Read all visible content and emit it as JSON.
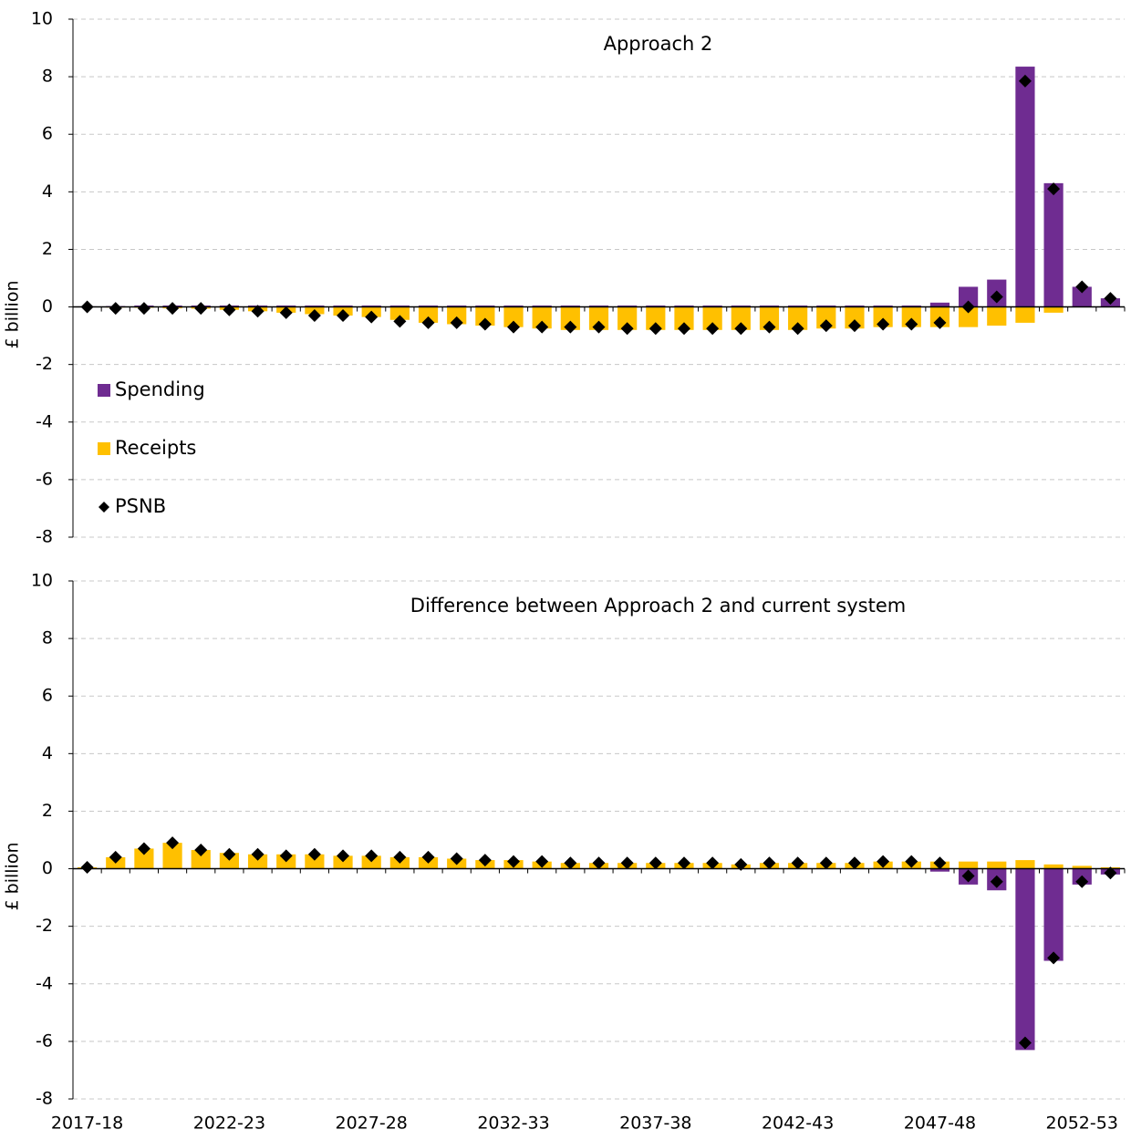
{
  "chart_data": [
    {
      "type": "bar",
      "title": "Approach 2",
      "y_label": "£ billion",
      "stacked": true,
      "grid": true,
      "legend": "left",
      "ylim": [
        -8,
        10
      ],
      "yticks": [
        -8,
        -6,
        -4,
        -2,
        0,
        2,
        4,
        6,
        8,
        10
      ],
      "series": [
        {
          "name": "Spending",
          "kind": "bar",
          "color": "#6f2c91",
          "values": [
            0.02,
            0.03,
            0.05,
            0.05,
            0.05,
            0.05,
            0.05,
            0.05,
            0.05,
            0.05,
            0.05,
            0.05,
            0.05,
            0.05,
            0.05,
            0.05,
            0.05,
            0.05,
            0.05,
            0.05,
            0.05,
            0.05,
            0.05,
            0.05,
            0.05,
            0.05,
            0.05,
            0.05,
            0.05,
            0.05,
            0.15,
            0.7,
            0.95,
            8.35,
            4.3,
            0.7,
            0.3
          ]
        },
        {
          "name": "Receipts",
          "kind": "bar",
          "color": "#ffc000",
          "values": [
            0,
            -0.02,
            -0.03,
            -0.05,
            -0.06,
            -0.1,
            -0.15,
            -0.2,
            -0.25,
            -0.3,
            -0.35,
            -0.45,
            -0.55,
            -0.6,
            -0.65,
            -0.7,
            -0.75,
            -0.8,
            -0.8,
            -0.8,
            -0.8,
            -0.8,
            -0.8,
            -0.8,
            -0.8,
            -0.8,
            -0.75,
            -0.75,
            -0.7,
            -0.7,
            -0.7,
            -0.7,
            -0.65,
            -0.55,
            -0.2,
            0,
            0
          ]
        },
        {
          "name": "PSNB",
          "kind": "marker",
          "color": "#000000",
          "values": [
            0,
            -0.05,
            -0.05,
            -0.05,
            -0.05,
            -0.1,
            -0.15,
            -0.2,
            -0.3,
            -0.3,
            -0.35,
            -0.5,
            -0.55,
            -0.55,
            -0.6,
            -0.7,
            -0.7,
            -0.7,
            -0.7,
            -0.75,
            -0.75,
            -0.75,
            -0.75,
            -0.75,
            -0.7,
            -0.75,
            -0.65,
            -0.65,
            -0.6,
            -0.6,
            -0.55,
            0,
            0.35,
            7.85,
            4.1,
            0.7,
            0.3
          ]
        }
      ]
    },
    {
      "type": "bar",
      "title": "Difference between Approach 2 and current system",
      "y_label": "£ billion",
      "stacked": true,
      "grid": true,
      "ylim": [
        -8,
        10
      ],
      "yticks": [
        -8,
        -6,
        -4,
        -2,
        0,
        2,
        4,
        6,
        8,
        10
      ],
      "categories": [
        "2017-18",
        null,
        null,
        null,
        null,
        "2022-23",
        null,
        null,
        null,
        null,
        "2027-28",
        null,
        null,
        null,
        null,
        "2032-33",
        null,
        null,
        null,
        null,
        "2037-38",
        null,
        null,
        null,
        null,
        "2042-43",
        null,
        null,
        null,
        null,
        "2047-48",
        null,
        null,
        null,
        null,
        "2052-53",
        null
      ],
      "series": [
        {
          "kind": "bar",
          "color": "#6f2c91",
          "values": [
            0,
            0,
            0,
            0,
            0,
            0,
            0,
            0,
            0,
            0,
            0,
            0,
            0,
            0,
            0,
            0,
            0,
            0,
            0,
            0,
            0,
            0,
            0,
            0,
            0,
            0,
            0,
            0,
            0,
            0,
            -0.1,
            -0.55,
            -0.75,
            -6.3,
            -3.2,
            -0.55,
            -0.2
          ]
        },
        {
          "kind": "bar",
          "color": "#ffc000",
          "values": [
            0.05,
            0.4,
            0.7,
            0.9,
            0.65,
            0.55,
            0.5,
            0.5,
            0.5,
            0.45,
            0.45,
            0.4,
            0.4,
            0.35,
            0.3,
            0.3,
            0.25,
            0.2,
            0.2,
            0.2,
            0.2,
            0.2,
            0.2,
            0.15,
            0.2,
            0.2,
            0.2,
            0.2,
            0.25,
            0.25,
            0.25,
            0.25,
            0.25,
            0.3,
            0.15,
            0.1,
            0.05
          ]
        },
        {
          "kind": "marker",
          "color": "#000000",
          "values": [
            0.05,
            0.4,
            0.7,
            0.9,
            0.65,
            0.5,
            0.5,
            0.45,
            0.5,
            0.45,
            0.45,
            0.4,
            0.4,
            0.35,
            0.3,
            0.25,
            0.25,
            0.2,
            0.2,
            0.2,
            0.2,
            0.2,
            0.2,
            0.15,
            0.2,
            0.2,
            0.2,
            0.2,
            0.25,
            0.25,
            0.2,
            -0.25,
            -0.45,
            -6.05,
            -3.1,
            -0.45,
            -0.15
          ]
        }
      ]
    }
  ]
}
